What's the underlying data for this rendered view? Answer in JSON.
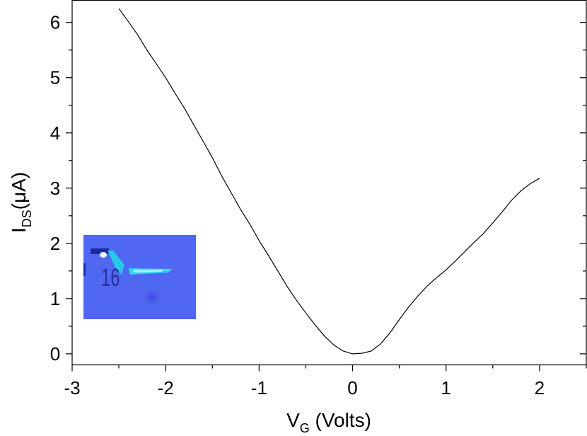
{
  "chart_data": {
    "type": "line",
    "xlabel": {
      "main": "V",
      "sub": "G",
      "rest": " (Volts)"
    },
    "ylabel": {
      "main": "I",
      "sub": "DS",
      "rest": "(μA)"
    },
    "xlim": [
      -3,
      2.5
    ],
    "ylim": [
      -0.2,
      6.4
    ],
    "xticks": [
      -3,
      -2,
      -1,
      0,
      1,
      2
    ],
    "xtick_labels": [
      "-3",
      "-2",
      "-1",
      "0",
      "1",
      "2"
    ],
    "yticks": [
      0,
      1,
      2,
      3,
      4,
      5,
      6
    ],
    "ytick_labels": [
      "0",
      "1",
      "2",
      "3",
      "4",
      "5",
      "6"
    ],
    "grid": false,
    "series": [
      {
        "color": "#000000",
        "x": [
          -2.5,
          -2.4,
          -2.3,
          -2.2,
          -2.1,
          -2.0,
          -1.9,
          -1.8,
          -1.7,
          -1.6,
          -1.5,
          -1.4,
          -1.3,
          -1.2,
          -1.1,
          -1.0,
          -0.9,
          -0.8,
          -0.7,
          -0.6,
          -0.5,
          -0.4,
          -0.3,
          -0.2,
          -0.1,
          0.0,
          0.1,
          0.2,
          0.3,
          0.4,
          0.5,
          0.6,
          0.7,
          0.8,
          0.9,
          1.0,
          1.1,
          1.2,
          1.3,
          1.4,
          1.5,
          1.6,
          1.7,
          1.8,
          1.9,
          2.0
        ],
        "y": [
          6.25,
          6.02,
          5.78,
          5.5,
          5.25,
          5.0,
          4.72,
          4.45,
          4.15,
          3.85,
          3.55,
          3.22,
          2.92,
          2.62,
          2.35,
          2.05,
          1.78,
          1.5,
          1.22,
          0.97,
          0.74,
          0.52,
          0.32,
          0.16,
          0.05,
          0.0,
          0.01,
          0.05,
          0.18,
          0.38,
          0.62,
          0.85,
          1.05,
          1.23,
          1.38,
          1.52,
          1.68,
          1.85,
          2.02,
          2.18,
          2.37,
          2.57,
          2.78,
          2.95,
          3.08,
          3.18
        ]
      }
    ],
    "inset": {
      "label": "16",
      "position": "lower-left"
    }
  }
}
